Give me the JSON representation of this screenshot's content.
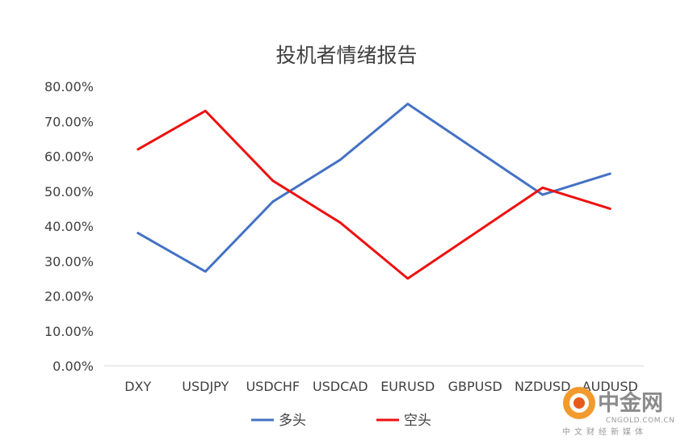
{
  "chart_data": {
    "type": "line",
    "title": "投机者情绪报告",
    "categories": [
      "DXY",
      "USDJPY",
      "USDCHF",
      "USDCAD",
      "EURUSD",
      "GBPUSD",
      "NZDUSD",
      "AUDUSD"
    ],
    "series": [
      {
        "name": "多头",
        "color": "#4472c4",
        "values": [
          0.38,
          0.27,
          0.47,
          0.59,
          0.75,
          0.62,
          0.49,
          0.55
        ]
      },
      {
        "name": "空头",
        "color": "#ee1111",
        "values": [
          0.62,
          0.73,
          0.53,
          0.41,
          0.25,
          0.38,
          0.51,
          0.45
        ]
      }
    ],
    "y_ticks": [
      "0.00%",
      "10.00%",
      "20.00%",
      "30.00%",
      "40.00%",
      "50.00%",
      "60.00%",
      "70.00%",
      "80.00%"
    ],
    "ylim": [
      0,
      0.8
    ],
    "grid": false,
    "legend_position": "bottom"
  },
  "watermark": {
    "name": "中金网",
    "url": "CNGOLD.COM.CN",
    "tagline": "中文财经新媒体"
  }
}
